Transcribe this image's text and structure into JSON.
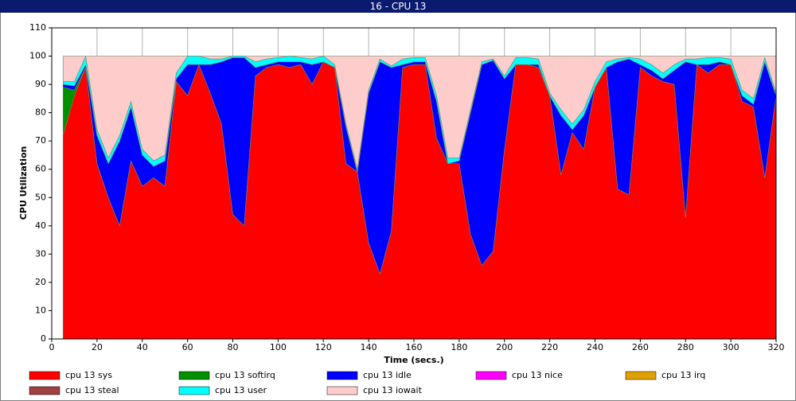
{
  "chart_data": {
    "type": "stacked_area",
    "title": "16 - CPU 13",
    "xlabel": "Time (secs.)",
    "ylabel": "CPU Utilization",
    "x": [
      5,
      10,
      15,
      20,
      25,
      30,
      35,
      40,
      45,
      50,
      55,
      60,
      65,
      70,
      75,
      80,
      85,
      90,
      95,
      100,
      105,
      110,
      115,
      120,
      125,
      130,
      135,
      140,
      145,
      150,
      155,
      160,
      165,
      170,
      175,
      180,
      185,
      190,
      195,
      200,
      205,
      210,
      215,
      220,
      225,
      230,
      235,
      240,
      245,
      250,
      255,
      260,
      265,
      270,
      275,
      280,
      285,
      290,
      295,
      300,
      305,
      310,
      315,
      320
    ],
    "series": [
      {
        "name": "cpu 13 sys",
        "color": "#ff0000",
        "values": [
          72,
          86,
          96,
          62,
          50,
          40,
          63,
          54,
          57,
          54,
          91,
          86,
          97,
          87,
          76,
          44,
          40,
          93,
          96,
          97,
          96,
          97,
          90,
          98,
          96,
          62,
          59,
          34,
          23,
          38,
          96,
          97,
          97,
          71,
          62,
          62,
          37,
          26,
          31,
          67,
          97,
          97,
          96,
          86,
          58,
          73,
          67,
          89,
          96,
          53,
          51,
          96,
          93,
          91,
          90,
          43,
          97,
          94,
          97,
          97,
          84,
          82,
          57,
          86
        ]
      },
      {
        "name": "cpu 13 softirq",
        "color": "#009000",
        "values": [
          17,
          2,
          0,
          0,
          0,
          0,
          0,
          0,
          0,
          0,
          0,
          0,
          0,
          0,
          0,
          0,
          0,
          0,
          0,
          0,
          0,
          0,
          0,
          0,
          0,
          0,
          0,
          0,
          0,
          0,
          0,
          0,
          0,
          0,
          0,
          0,
          0,
          0,
          0,
          0,
          0,
          0,
          0,
          0,
          0,
          0,
          0,
          0,
          0,
          0,
          0,
          0,
          0,
          0,
          0,
          0,
          0,
          0,
          0,
          0,
          0,
          0,
          0,
          0
        ]
      },
      {
        "name": "cpu 13 idle",
        "color": "#0000ff",
        "values": [
          1,
          1.5,
          1,
          10,
          12,
          30,
          19,
          11,
          4,
          9,
          1,
          11,
          0,
          10,
          22,
          55.5,
          59.5,
          3,
          1,
          1,
          2,
          1,
          7,
          0,
          0,
          13,
          0,
          53,
          75,
          58,
          1,
          1,
          1,
          13,
          0,
          1,
          43,
          71,
          67.5,
          25,
          0,
          0,
          1,
          0,
          21,
          1,
          12,
          0,
          0,
          45,
          48,
          1,
          2,
          1,
          5,
          55,
          0,
          3,
          1,
          0,
          2,
          1,
          41,
          0
        ]
      },
      {
        "name": "cpu 13 nice",
        "color": "#ff00ff",
        "values": [
          0,
          0,
          0,
          0,
          0,
          0,
          0,
          0,
          0,
          0,
          0,
          0,
          0,
          0,
          0,
          0,
          0,
          0,
          0,
          0,
          0,
          0,
          0,
          0,
          0,
          0,
          0,
          0,
          0,
          0,
          0,
          0,
          0,
          0,
          0,
          0,
          0,
          0,
          0,
          0,
          0,
          0,
          0,
          0,
          0,
          0,
          0,
          0,
          0,
          0,
          0,
          0,
          0,
          0,
          0,
          0,
          0,
          0,
          0,
          0,
          0,
          0,
          0,
          0
        ]
      },
      {
        "name": "cpu 13 irq",
        "color": "#e0a000",
        "values": [
          0,
          0,
          0,
          0,
          0,
          0,
          0,
          0,
          0,
          0,
          0,
          0,
          0,
          0,
          0,
          0,
          0,
          0,
          0,
          0,
          0,
          0,
          0,
          0,
          0,
          0,
          0,
          0,
          0,
          0,
          0,
          0,
          0,
          0,
          0,
          0,
          0,
          0,
          0,
          0,
          0,
          0,
          0,
          0,
          0,
          0,
          0,
          0,
          0,
          0,
          0,
          0,
          0,
          0,
          0,
          0,
          0,
          0,
          0,
          0,
          0,
          0,
          0,
          0
        ]
      },
      {
        "name": "cpu 13 steal",
        "color": "#a04040",
        "values": [
          0,
          0,
          0,
          0,
          0,
          0,
          0,
          0,
          0,
          0,
          0,
          0,
          0,
          0,
          0,
          0,
          0,
          0,
          0,
          0,
          0,
          0,
          0,
          0,
          0,
          0,
          0,
          0,
          0,
          0,
          0,
          0,
          0,
          0,
          0,
          0,
          0,
          0,
          0,
          0,
          0,
          0,
          0,
          0,
          0,
          0,
          0,
          0,
          0,
          0,
          0,
          0,
          0,
          0,
          0,
          0,
          0,
          0,
          0,
          0,
          0,
          0,
          0,
          0
        ]
      },
      {
        "name": "cpu 13 user",
        "color": "#00ffff",
        "values": [
          1,
          1.5,
          3,
          2,
          2,
          2,
          2,
          2,
          2,
          2,
          2,
          3,
          3,
          2,
          1,
          0.5,
          0.5,
          2,
          2,
          1.5,
          2,
          1.5,
          2,
          2,
          1,
          1,
          1,
          1,
          1,
          0.5,
          2,
          1.5,
          1.5,
          2,
          2,
          1,
          1,
          1,
          0.5,
          1,
          2.5,
          2.5,
          2,
          1,
          2,
          2,
          2,
          2,
          2,
          1,
          0.5,
          2,
          2,
          2,
          2,
          1,
          2,
          2.5,
          1.5,
          2,
          2,
          2,
          1.5,
          1
        ]
      },
      {
        "name": "cpu 13 iowait",
        "color": "#ffcccc",
        "values": [
          9,
          9,
          0,
          26,
          36,
          28,
          16,
          33,
          37,
          35,
          6,
          0,
          0,
          1,
          1,
          0,
          0,
          2,
          1,
          0.5,
          0,
          0.5,
          1,
          0,
          3,
          24,
          40,
          12,
          1,
          3.5,
          1,
          0.5,
          0.5,
          14,
          36,
          36,
          19,
          2,
          1,
          7,
          0.5,
          0.5,
          1,
          13,
          19,
          24,
          19,
          9,
          2,
          1,
          0.5,
          1,
          3,
          6,
          3,
          1,
          1,
          0.5,
          0.5,
          1,
          12,
          15,
          0.5,
          13
        ]
      }
    ],
    "xlim": [
      0,
      320
    ],
    "ylim": [
      0,
      110
    ],
    "xticks": [
      0,
      20,
      40,
      60,
      80,
      100,
      120,
      140,
      160,
      180,
      200,
      220,
      240,
      260,
      280,
      300,
      320
    ],
    "yticks": [
      0,
      10,
      20,
      30,
      40,
      50,
      60,
      70,
      80,
      90,
      100,
      110
    ],
    "grid": true
  }
}
